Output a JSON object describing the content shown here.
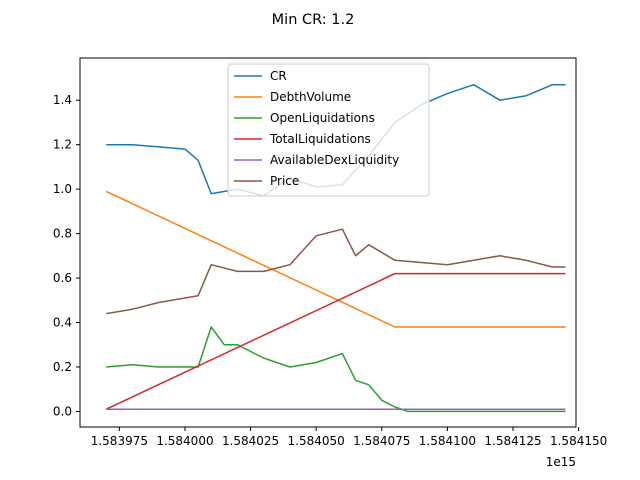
{
  "chart_data": {
    "type": "line",
    "title": "Min CR: 1.2",
    "xlabel": "",
    "ylabel": "",
    "x_offset_label": "1e15",
    "xlim": [
      1583960000000000.0,
      1584149000000000.0
    ],
    "ylim": [
      -0.07,
      1.59
    ],
    "x_ticks": [
      1583975000000000.0,
      1584000000000000.0,
      1584025000000000.0,
      1584050000000000.0,
      1584075000000000.0,
      1584100000000000.0,
      1584125000000000.0,
      1584150000000000.0
    ],
    "x_tick_labels": [
      "1.583975",
      "1.584000",
      "1.584025",
      "1.584050",
      "1.584075",
      "1.584100",
      "1.584125",
      "1.584150"
    ],
    "y_ticks": [
      0.0,
      0.2,
      0.4,
      0.6,
      0.8,
      1.0,
      1.2,
      1.4
    ],
    "y_tick_labels": [
      "0.0",
      "0.2",
      "0.4",
      "0.6",
      "0.8",
      "1.0",
      "1.2",
      "1.4"
    ],
    "grid": false,
    "legend_position": "top-center",
    "series": [
      {
        "name": "CR",
        "color": "#1f77b4",
        "x": [
          1583970000000000.0,
          1583980000000000.0,
          1583990000000000.0,
          1584000000000000.0,
          1584005000000000.0,
          1584010000000000.0,
          1584020000000000.0,
          1584030000000000.0,
          1584040000000000.0,
          1584050000000000.0,
          1584060000000000.0,
          1584070000000000.0,
          1584080000000000.0,
          1584090000000000.0,
          1584100000000000.0,
          1584110000000000.0,
          1584120000000000.0,
          1584130000000000.0,
          1584140000000000.0,
          1584145000000000.0
        ],
        "y": [
          1.2,
          1.2,
          1.19,
          1.18,
          1.13,
          0.98,
          1.0,
          0.97,
          1.05,
          1.01,
          1.02,
          1.15,
          1.3,
          1.38,
          1.43,
          1.47,
          1.4,
          1.42,
          1.47,
          1.47
        ]
      },
      {
        "name": "DebthVolume",
        "color": "#ff7f0e",
        "x": [
          1583970000000000.0,
          1584080000000000.0,
          1584145000000000.0
        ],
        "y": [
          0.99,
          0.38,
          0.38
        ]
      },
      {
        "name": "OpenLiquidations",
        "color": "#2ca02c",
        "x": [
          1583970000000000.0,
          1583980000000000.0,
          1583990000000000.0,
          1584005000000000.0,
          1584010000000000.0,
          1584015000000000.0,
          1584020000000000.0,
          1584030000000000.0,
          1584040000000000.0,
          1584050000000000.0,
          1584060000000000.0,
          1584065000000000.0,
          1584070000000000.0,
          1584075000000000.0,
          1584080000000000.0,
          1584085000000000.0,
          1584100000000000.0,
          1584145000000000.0
        ],
        "y": [
          0.2,
          0.21,
          0.2,
          0.2,
          0.38,
          0.3,
          0.3,
          0.24,
          0.2,
          0.22,
          0.26,
          0.14,
          0.12,
          0.05,
          0.02,
          0.0,
          0.0,
          0.0
        ]
      },
      {
        "name": "TotalLiquidations",
        "color": "#d62728",
        "x": [
          1583970000000000.0,
          1584080000000000.0,
          1584145000000000.0
        ],
        "y": [
          0.01,
          0.62,
          0.62
        ]
      },
      {
        "name": "AvailableDexLiquidity",
        "color": "#9467bd",
        "x": [
          1583970000000000.0,
          1584145000000000.0
        ],
        "y": [
          0.01,
          0.01
        ]
      },
      {
        "name": "Price",
        "color": "#8c564b",
        "x": [
          1583970000000000.0,
          1583980000000000.0,
          1583990000000000.0,
          1584005000000000.0,
          1584010000000000.0,
          1584020000000000.0,
          1584030000000000.0,
          1584040000000000.0,
          1584050000000000.0,
          1584060000000000.0,
          1584065000000000.0,
          1584070000000000.0,
          1584080000000000.0,
          1584090000000000.0,
          1584100000000000.0,
          1584110000000000.0,
          1584120000000000.0,
          1584130000000000.0,
          1584140000000000.0,
          1584145000000000.0
        ],
        "y": [
          0.44,
          0.46,
          0.49,
          0.52,
          0.66,
          0.63,
          0.63,
          0.66,
          0.79,
          0.82,
          0.7,
          0.75,
          0.68,
          0.67,
          0.66,
          0.68,
          0.7,
          0.68,
          0.65,
          0.65
        ]
      }
    ]
  }
}
